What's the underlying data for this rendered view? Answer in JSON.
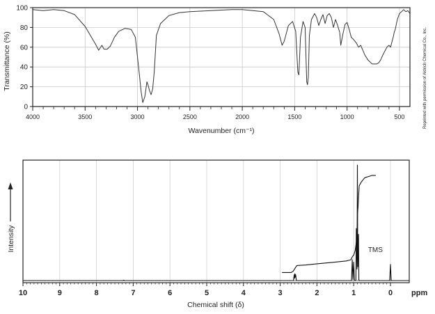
{
  "chart_data": [
    {
      "type": "line",
      "xlabel": "Wavenumber (cm⁻¹)",
      "ylabel": "Transmittance (%)",
      "xlim": [
        4000,
        400
      ],
      "ylim": [
        0,
        100
      ],
      "x_ticks": [
        4000,
        3500,
        3000,
        2500,
        2000,
        1500,
        1000,
        500
      ],
      "y_ticks": [
        0,
        20,
        40,
        60,
        80,
        100
      ],
      "grid": true,
      "x": [
        4000,
        3900,
        3800,
        3700,
        3600,
        3500,
        3450,
        3400,
        3370,
        3340,
        3320,
        3290,
        3260,
        3220,
        3180,
        3120,
        3060,
        3020,
        2990,
        2965,
        2950,
        2930,
        2910,
        2900,
        2885,
        2870,
        2855,
        2840,
        2820,
        2780,
        2700,
        2600,
        2500,
        2300,
        2100,
        2000,
        1900,
        1800,
        1700,
        1650,
        1620,
        1600,
        1560,
        1520,
        1490,
        1470,
        1460,
        1445,
        1420,
        1400,
        1385,
        1378,
        1370,
        1360,
        1340,
        1310,
        1290,
        1270,
        1250,
        1230,
        1210,
        1190,
        1170,
        1150,
        1130,
        1110,
        1090,
        1070,
        1060,
        1040,
        1020,
        1000,
        980,
        960,
        940,
        910,
        890,
        870,
        850,
        830,
        800,
        760,
        720,
        700,
        680,
        660,
        640,
        620,
        600,
        585,
        570,
        560,
        550,
        540,
        520,
        500,
        480,
        460,
        440,
        420,
        400
      ],
      "values": [
        98,
        97,
        98,
        97,
        93,
        81,
        72,
        63,
        57,
        62,
        58,
        58,
        61,
        70,
        76,
        79,
        78,
        70,
        40,
        15,
        4,
        10,
        25,
        22,
        16,
        12,
        18,
        35,
        72,
        84,
        92,
        95,
        96,
        97,
        98,
        98,
        97,
        96,
        88,
        74,
        62,
        66,
        82,
        86,
        76,
        35,
        32,
        70,
        86,
        80,
        25,
        22,
        30,
        72,
        88,
        94,
        90,
        82,
        88,
        93,
        84,
        92,
        94,
        90,
        80,
        88,
        82,
        75,
        62,
        73,
        83,
        85,
        78,
        70,
        68,
        64,
        60,
        62,
        57,
        52,
        47,
        43,
        43,
        44,
        47,
        52,
        56,
        60,
        62,
        60,
        66,
        70,
        75,
        78,
        88,
        94,
        96,
        98,
        96,
        97,
        94
      ],
      "annotations": [
        "Reprinted with permission of Aldrich Chemical Co., Inc."
      ]
    },
    {
      "type": "line",
      "xlabel": "Chemical shift (δ)",
      "ylabel": "Intensity",
      "unit": "ppm",
      "xlim": [
        10,
        0
      ],
      "x_ticks": [
        10,
        9,
        8,
        7,
        6,
        5,
        4,
        3,
        2,
        1,
        0
      ],
      "grid": true,
      "series": [
        {
          "x": [
            10,
            7.28,
            7.26,
            7.24,
            2.64,
            2.62,
            2.61,
            2.6,
            2.59,
            2.58,
            2.56,
            1.06,
            1.04,
            1.02,
            1.0,
            0.98,
            0.96,
            0.94,
            0.93,
            0.91,
            0.9,
            0.89,
            0.87,
            0.86,
            0.84,
            0.05,
            0.02,
            0.0,
            -0.02,
            -0.05,
            -0.5
          ],
          "values": [
            0.02,
            0.02,
            0.4,
            0.02,
            0.02,
            5,
            2,
            6,
            3,
            5,
            0.02,
            0.02,
            18,
            1,
            16,
            0.5,
            0.02,
            0.3,
            45,
            10,
            100,
            12,
            40,
            0.3,
            0.02,
            0.02,
            0.02,
            14,
            0.02,
            0.02,
            0.02
          ]
        },
        {
          "x": [
            2.95,
            2.7,
            2.65,
            2.55,
            2.3,
            2.0,
            1.5,
            1.2,
            1.08,
            1.03,
            1.0,
            0.96,
            0.93,
            0.91,
            0.895,
            0.88,
            0.87,
            0.85,
            0.8,
            0.7,
            0.6,
            0.5,
            0.4
          ],
          "values": [
            7,
            7,
            8,
            13,
            13.5,
            14.5,
            16,
            17,
            18,
            21,
            22,
            26,
            33,
            38,
            58,
            64,
            72,
            82,
            85,
            89,
            90,
            91,
            91
          ]
        }
      ],
      "labels": [
        {
          "text": "TMS",
          "x": 0.22,
          "y": 14
        }
      ]
    }
  ]
}
